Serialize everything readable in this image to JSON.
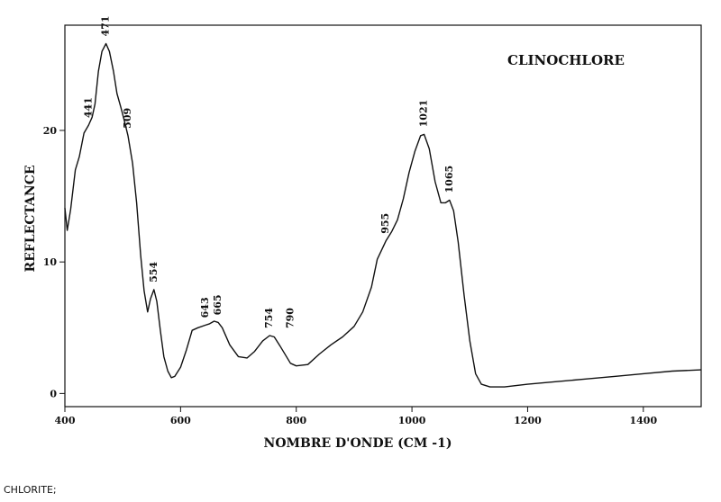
{
  "chart_data": {
    "type": "line",
    "title": "CLINOCHLORE",
    "xlabel": "NOMBRE D'ONDE (CM -1)",
    "ylabel": "REFLECTANCE",
    "xlim": [
      400,
      1500
    ],
    "ylim": [
      -1,
      28
    ],
    "x_ticks": [
      400,
      600,
      800,
      1000,
      1200,
      1400
    ],
    "y_ticks": [
      0,
      10,
      20
    ],
    "grid": false,
    "series": [
      {
        "color": "#111111",
        "points": [
          [
            400,
            14.1
          ],
          [
            404,
            12.4
          ],
          [
            410,
            14.0
          ],
          [
            418,
            17.0
          ],
          [
            425,
            18.0
          ],
          [
            433,
            19.8
          ],
          [
            441,
            20.4
          ],
          [
            447,
            21.0
          ],
          [
            452,
            22.0
          ],
          [
            458,
            24.5
          ],
          [
            464,
            26.0
          ],
          [
            471,
            26.6
          ],
          [
            477,
            26.0
          ],
          [
            484,
            24.5
          ],
          [
            490,
            22.8
          ],
          [
            497,
            21.7
          ],
          [
            503,
            20.7
          ],
          [
            509,
            19.6
          ],
          [
            517,
            17.5
          ],
          [
            524,
            14.5
          ],
          [
            531,
            10.5
          ],
          [
            537,
            7.8
          ],
          [
            543,
            6.2
          ],
          [
            548,
            7.2
          ],
          [
            554,
            7.9
          ],
          [
            559,
            7.0
          ],
          [
            565,
            4.8
          ],
          [
            571,
            2.8
          ],
          [
            578,
            1.7
          ],
          [
            584,
            1.2
          ],
          [
            590,
            1.3
          ],
          [
            600,
            2.0
          ],
          [
            610,
            3.3
          ],
          [
            620,
            4.8
          ],
          [
            630,
            5.0
          ],
          [
            643,
            5.2
          ],
          [
            650,
            5.3
          ],
          [
            658,
            5.5
          ],
          [
            665,
            5.4
          ],
          [
            672,
            5.0
          ],
          [
            685,
            3.7
          ],
          [
            700,
            2.8
          ],
          [
            715,
            2.7
          ],
          [
            728,
            3.2
          ],
          [
            742,
            4.0
          ],
          [
            754,
            4.4
          ],
          [
            762,
            4.3
          ],
          [
            772,
            3.6
          ],
          [
            790,
            2.3
          ],
          [
            800,
            2.1
          ],
          [
            820,
            2.2
          ],
          [
            840,
            3.0
          ],
          [
            860,
            3.7
          ],
          [
            880,
            4.3
          ],
          [
            900,
            5.1
          ],
          [
            915,
            6.2
          ],
          [
            930,
            8.1
          ],
          [
            940,
            10.2
          ],
          [
            955,
            11.6
          ],
          [
            965,
            12.3
          ],
          [
            975,
            13.2
          ],
          [
            985,
            14.8
          ],
          [
            995,
            16.8
          ],
          [
            1005,
            18.4
          ],
          [
            1015,
            19.6
          ],
          [
            1021,
            19.7
          ],
          [
            1030,
            18.6
          ],
          [
            1040,
            16.1
          ],
          [
            1050,
            14.5
          ],
          [
            1058,
            14.5
          ],
          [
            1065,
            14.7
          ],
          [
            1072,
            13.9
          ],
          [
            1080,
            11.5
          ],
          [
            1090,
            7.5
          ],
          [
            1100,
            4.0
          ],
          [
            1110,
            1.5
          ],
          [
            1120,
            0.7
          ],
          [
            1135,
            0.5
          ],
          [
            1160,
            0.5
          ],
          [
            1200,
            0.7
          ],
          [
            1250,
            0.9
          ],
          [
            1300,
            1.1
          ],
          [
            1350,
            1.3
          ],
          [
            1400,
            1.5
          ],
          [
            1450,
            1.7
          ],
          [
            1500,
            1.8
          ]
        ]
      }
    ],
    "peak_labels": [
      {
        "x": 441,
        "y": 20.4,
        "text": "441"
      },
      {
        "x": 471,
        "y": 26.6,
        "text": "471"
      },
      {
        "x": 509,
        "y": 19.6,
        "text": "509"
      },
      {
        "x": 554,
        "y": 7.9,
        "text": "554"
      },
      {
        "x": 643,
        "y": 5.2,
        "text": "643"
      },
      {
        "x": 665,
        "y": 5.4,
        "text": "665"
      },
      {
        "x": 754,
        "y": 4.4,
        "text": "754"
      },
      {
        "x": 790,
        "y": 4.4,
        "text": "790"
      },
      {
        "x": 955,
        "y": 11.6,
        "text": "955"
      },
      {
        "x": 1021,
        "y": 19.7,
        "text": "1021"
      },
      {
        "x": 1065,
        "y": 14.7,
        "text": "1065"
      }
    ]
  },
  "footer": {
    "caption": "CHLORITE;"
  }
}
